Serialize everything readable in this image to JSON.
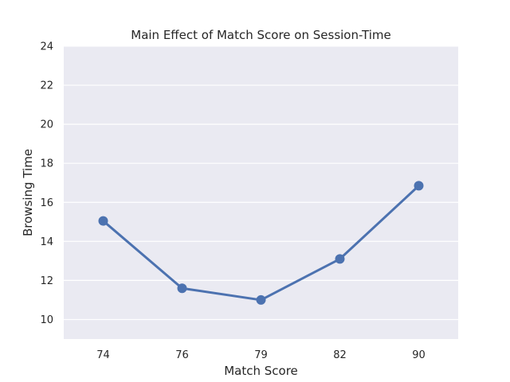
{
  "chart_data": {
    "type": "line",
    "title": "Main Effect of Match Score on Session-Time",
    "xlabel": "Match Score",
    "ylabel": "Browsing Time",
    "categories": [
      "74",
      "76",
      "79",
      "82",
      "90"
    ],
    "series": [
      {
        "values": [
          15.05,
          11.6,
          11.0,
          13.1,
          16.85
        ]
      }
    ],
    "ylim": [
      9.0,
      24.0
    ],
    "yticks": [
      10,
      12,
      14,
      16,
      18,
      20,
      22,
      24
    ],
    "grid": true,
    "legend": "none",
    "colors": {
      "background": "#eaeaf2",
      "series": "#4c72b0",
      "grid": "#ffffff",
      "text": "#262626"
    }
  }
}
